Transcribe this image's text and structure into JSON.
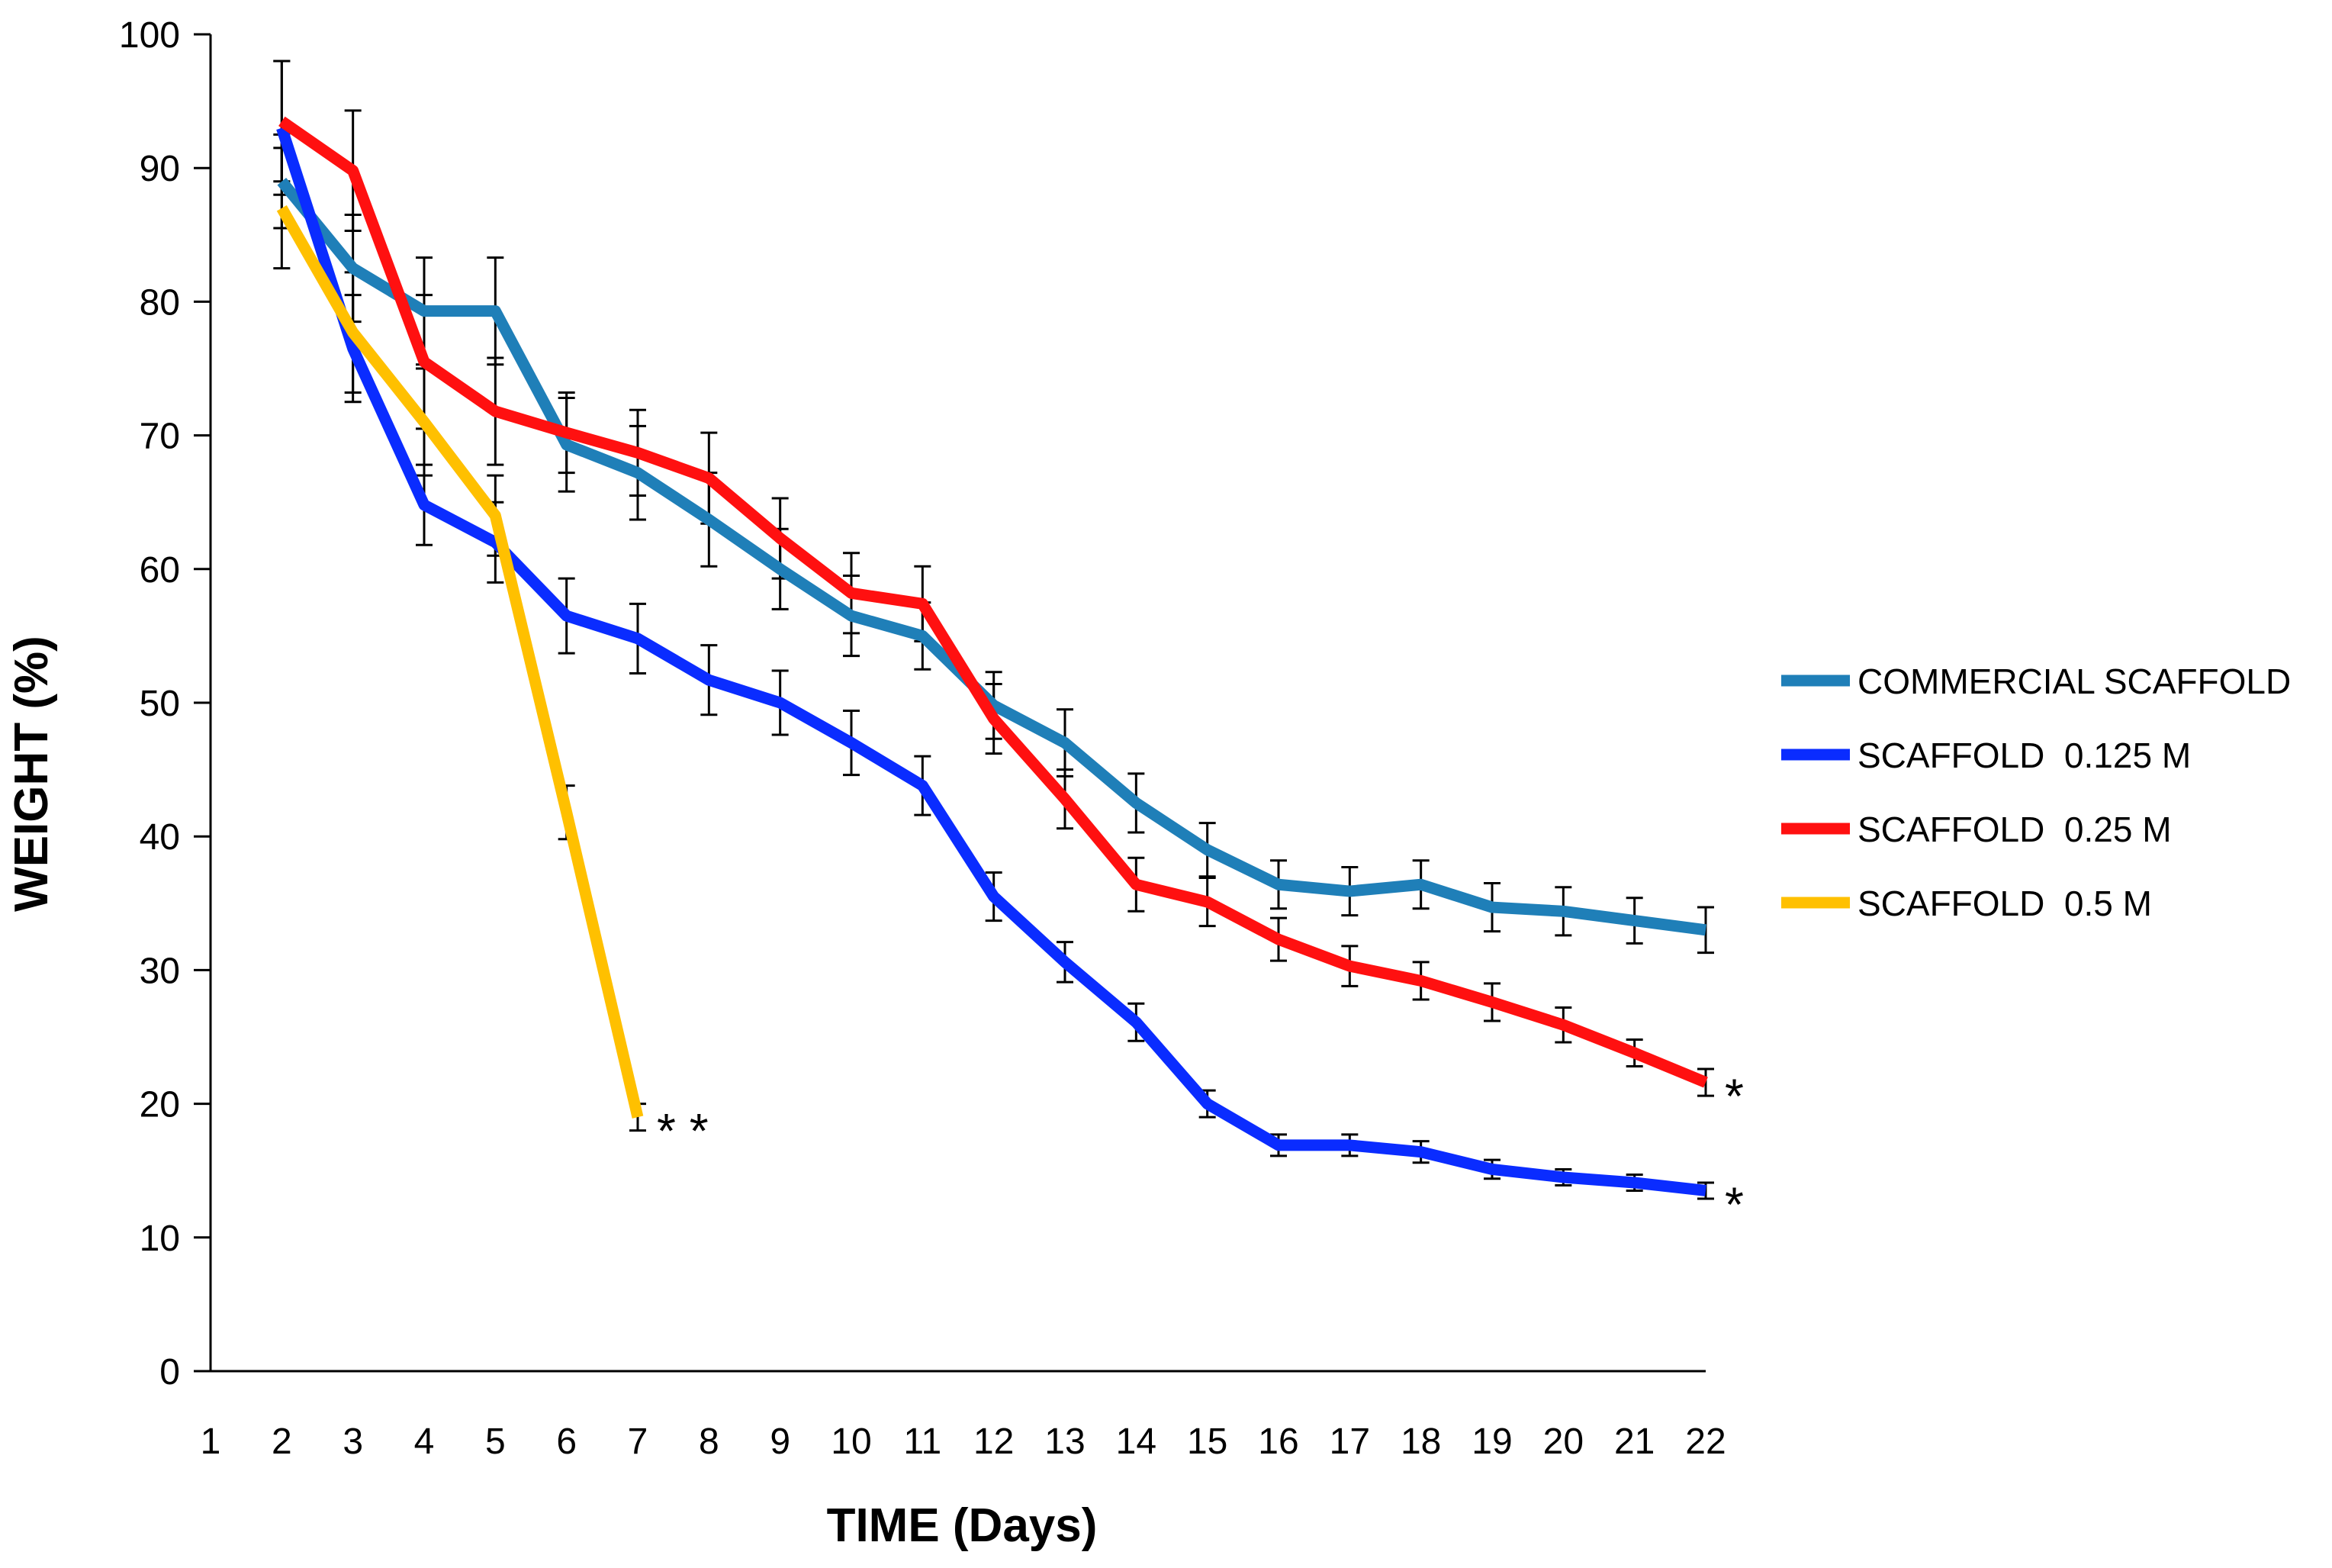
{
  "chart_data": {
    "type": "line",
    "title": "",
    "xlabel": "TIME (Days)",
    "ylabel": "WEIGHT (%)",
    "x": [
      1,
      2,
      3,
      4,
      5,
      6,
      7,
      8,
      9,
      10,
      11,
      12,
      13,
      14,
      15,
      16,
      17,
      18,
      19,
      20,
      21,
      22
    ],
    "xlim": [
      1,
      22
    ],
    "ylim": [
      0,
      100
    ],
    "yticks": [
      0,
      10,
      20,
      30,
      40,
      50,
      60,
      70,
      80,
      90,
      100
    ],
    "grid": false,
    "legend_position": "right",
    "error_bars": true,
    "series": [
      {
        "name": "COMMERCIAL SCAFFOLD",
        "color": "#1f7fb8",
        "x": [
          2,
          3,
          4,
          5,
          6,
          7,
          8,
          9,
          10,
          11,
          12,
          13,
          14,
          15,
          16,
          17,
          18,
          19,
          20,
          21,
          22
        ],
        "values": [
          89,
          82.5,
          79.3,
          79.3,
          69.3,
          67.2,
          63.7,
          60,
          56.5,
          55,
          49.8,
          47,
          42.5,
          39,
          36.4,
          35.9,
          36.4,
          34.7,
          34.4,
          33.7,
          33
        ],
        "errors": [
          3.5,
          4,
          4,
          4,
          3.5,
          3.5,
          3.5,
          3,
          3,
          2.5,
          2.5,
          2.5,
          2.2,
          2,
          1.8,
          1.8,
          1.8,
          1.8,
          1.8,
          1.7,
          1.7
        ]
      },
      {
        "name": "SCAFFOLD  0.125 M",
        "color": "#0a2cff",
        "x": [
          2,
          3,
          4,
          5,
          6,
          7,
          8,
          9,
          10,
          11,
          12,
          13,
          14,
          15,
          16,
          17,
          18,
          19,
          20,
          21,
          22
        ],
        "values": [
          93,
          76.5,
          64.8,
          62,
          56.5,
          54.8,
          51.7,
          50,
          47,
          43.8,
          35.5,
          30.6,
          26.1,
          20,
          16.9,
          16.9,
          16.4,
          15.1,
          14.5,
          14.1,
          13.5
        ],
        "errors": [
          5,
          4,
          3,
          3,
          2.8,
          2.6,
          2.6,
          2.4,
          2.4,
          2.2,
          1.8,
          1.5,
          1.4,
          1,
          0.8,
          0.8,
          0.8,
          0.7,
          0.6,
          0.6,
          0.6
        ]
      },
      {
        "name": "SCAFFOLD  0.25 M",
        "color": "#ff1010",
        "x": [
          2,
          3,
          4,
          5,
          6,
          7,
          8,
          9,
          10,
          11,
          12,
          13,
          14,
          15,
          16,
          17,
          18,
          19,
          20,
          21,
          22
        ],
        "values": [
          93.5,
          89.8,
          75.5,
          71.8,
          70.2,
          68.7,
          66.8,
          62.3,
          58.2,
          57.4,
          48.8,
          42.8,
          36.4,
          35.1,
          32.3,
          30.3,
          29.2,
          27.6,
          25.9,
          23.8,
          21.6
        ],
        "errors": [
          4.5,
          4.5,
          5,
          4,
          3,
          3.2,
          3.4,
          3,
          3,
          2.8,
          2.6,
          2.2,
          2,
          1.8,
          1.6,
          1.5,
          1.4,
          1.4,
          1.3,
          1,
          1
        ]
      },
      {
        "name": "SCAFFOLD  0.5 M",
        "color": "#ffc000",
        "x": [
          2,
          3,
          4,
          5,
          6,
          7
        ],
        "values": [
          87,
          77.7,
          71,
          64,
          41.8,
          19
        ],
        "errors": [
          4.5,
          4.5,
          4,
          3,
          2,
          1
        ]
      }
    ],
    "annotations": [
      {
        "text": "* *",
        "x": 7,
        "y": 19
      },
      {
        "text": "*",
        "x": 22,
        "y": 21.6
      },
      {
        "text": "*",
        "x": 22,
        "y": 13.5
      }
    ]
  }
}
